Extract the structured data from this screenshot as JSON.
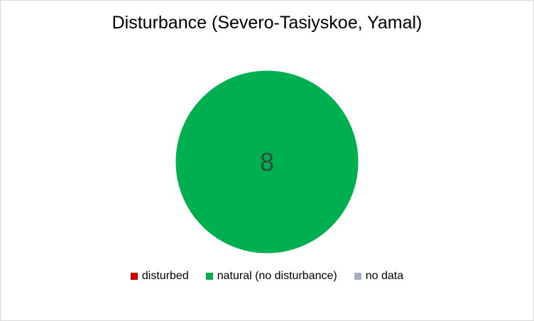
{
  "chart_data": {
    "type": "pie",
    "title": "Disturbance (Severo-Tasiyskoe, Yamal)",
    "categories": [
      "disturbed",
      "natural (no disturbance)",
      "no data"
    ],
    "values": [
      0,
      8,
      0
    ],
    "colors": [
      "#c00000",
      "#00b050",
      "#a6b0c0"
    ],
    "data_labels": [
      "",
      "8",
      ""
    ],
    "legend_position": "bottom"
  }
}
